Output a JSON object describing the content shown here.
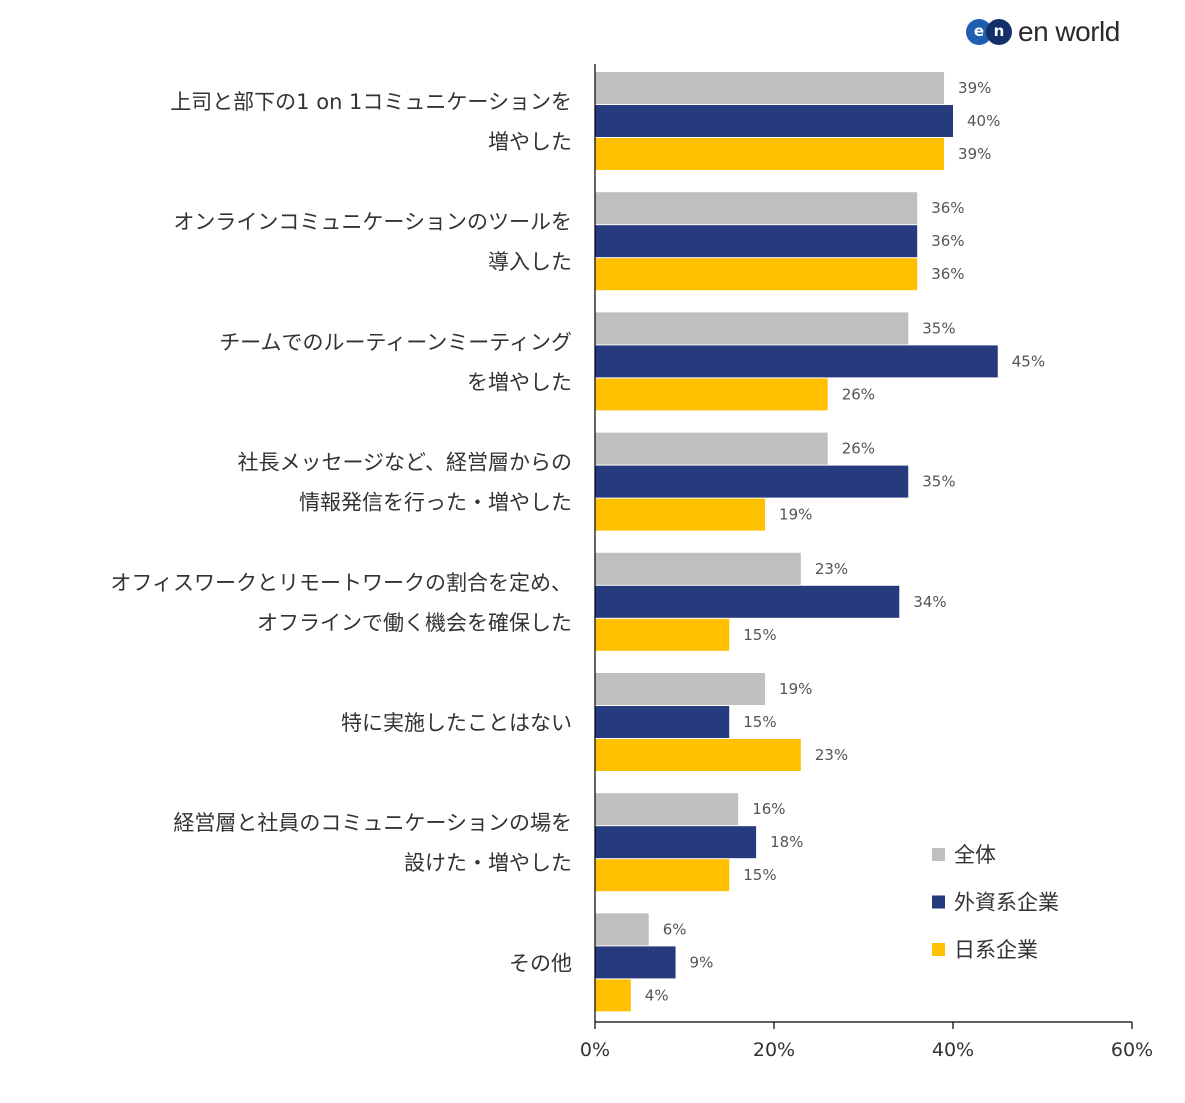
{
  "logo": {
    "mark_left": "e",
    "mark_right": "n",
    "text": "en world"
  },
  "colors": {
    "all": "#bfbfbf",
    "foreign": "#263a7e",
    "japanese": "#ffc000",
    "axis": "#000000"
  },
  "chart_data": {
    "type": "bar",
    "orientation": "horizontal",
    "categories": [
      [
        "上司と部下の1 on 1コミュニケーションを",
        "増やした"
      ],
      [
        "オンラインコミュニケーションのツールを",
        "導入した"
      ],
      [
        "チームでのルーティーンミーティング",
        "を増やした"
      ],
      [
        "社長メッセージなど、経営層からの",
        "情報発信を行った・増やした"
      ],
      [
        "オフィスワークとリモートワークの割合を定め、",
        "オフラインで働く機会を確保した"
      ],
      [
        "特に実施したことはない"
      ],
      [
        "経営層と社員のコミュニケーションの場を",
        "設けた・増やした"
      ],
      [
        "その他"
      ]
    ],
    "series": [
      {
        "name": "全体",
        "values": [
          39,
          36,
          35,
          26,
          23,
          19,
          16,
          6
        ],
        "labels": [
          "39%",
          "36%",
          "35%",
          "26%",
          "23%",
          "19%",
          "16%",
          "6%"
        ]
      },
      {
        "name": "外資系企業",
        "values": [
          40,
          36,
          45,
          35,
          34,
          15,
          18,
          9
        ],
        "labels": [
          "40%",
          "36%",
          "45%",
          "35%",
          "34%",
          "15%",
          "18%",
          "9%"
        ]
      },
      {
        "name": "日系企業",
        "values": [
          39,
          36,
          26,
          19,
          15,
          23,
          15,
          4
        ],
        "labels": [
          "39%",
          "36%",
          "26%",
          "19%",
          "15%",
          "23%",
          "15%",
          "4%"
        ]
      }
    ],
    "xlim": [
      0,
      60
    ],
    "xticks": [
      0,
      20,
      40,
      60
    ],
    "xtick_labels": [
      "0%",
      "20%",
      "40%",
      "60%"
    ],
    "legend_position": "bottom-right",
    "grid": false
  }
}
